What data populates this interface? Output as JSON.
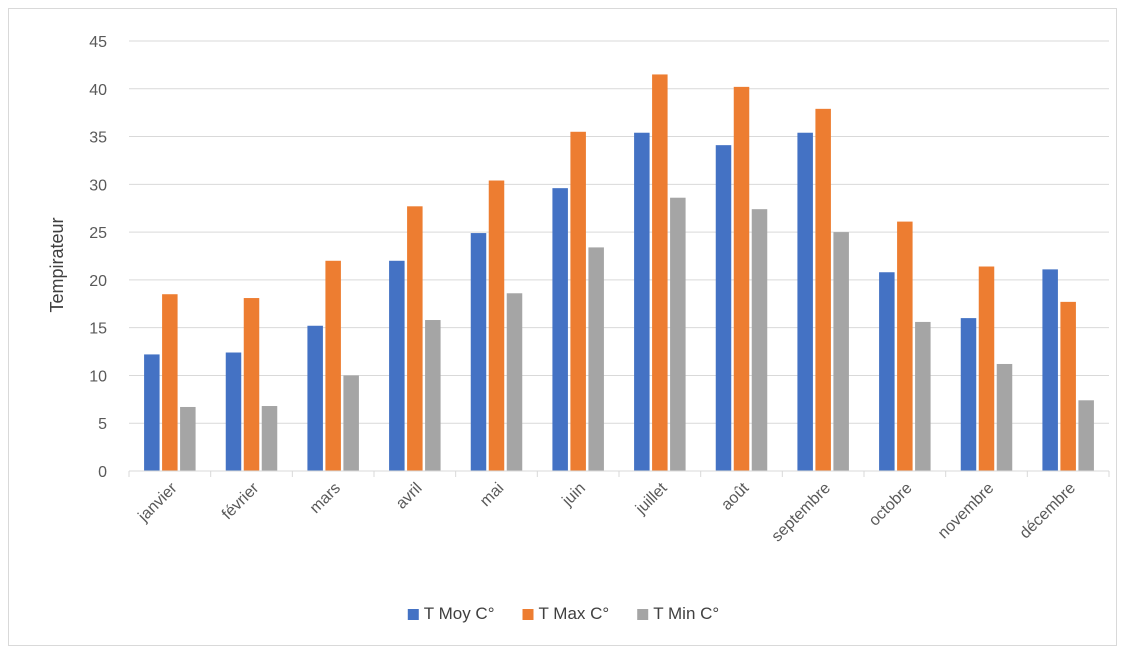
{
  "chart_data": {
    "type": "bar",
    "title": "",
    "xlabel": "",
    "ylabel": "Tempirateur",
    "ylim": [
      0,
      45
    ],
    "yticks": [
      0,
      5,
      10,
      15,
      20,
      25,
      30,
      35,
      40,
      45
    ],
    "grid": true,
    "legend_position": "bottom",
    "categories": [
      "janvier",
      "février",
      "mars",
      "avril",
      "mai",
      "juin",
      "juillet",
      "août",
      "septembre",
      "octobre",
      "novembre",
      "décembre"
    ],
    "series": [
      {
        "name": "T Moy C°",
        "color": "#4472c4",
        "values": [
          12.2,
          12.4,
          15.2,
          22.0,
          24.9,
          29.6,
          35.4,
          34.1,
          35.4,
          20.8,
          16.0,
          21.1
        ]
      },
      {
        "name": "T Max C°",
        "color": "#ed7d31",
        "values": [
          18.5,
          18.1,
          22.0,
          27.7,
          30.4,
          35.5,
          41.5,
          40.2,
          37.9,
          26.1,
          21.4,
          17.7
        ]
      },
      {
        "name": "T Min C°",
        "color": "#a5a5a5",
        "values": [
          6.7,
          6.8,
          10.0,
          15.8,
          18.6,
          23.4,
          28.6,
          27.4,
          25.0,
          15.6,
          11.2,
          7.4
        ]
      }
    ]
  }
}
